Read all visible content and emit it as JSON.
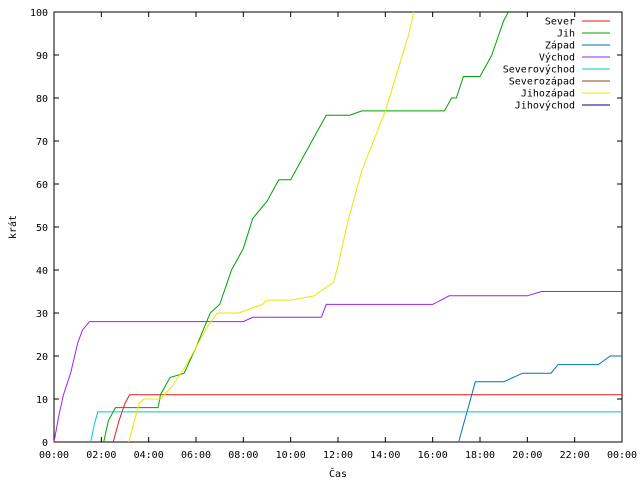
{
  "chart_data": {
    "type": "line",
    "xlabel": "Čas",
    "ylabel": "krát",
    "xlim": [
      0,
      24
    ],
    "ylim": [
      0,
      100
    ],
    "x_ticks": [
      {
        "v": 0,
        "label": "00:00"
      },
      {
        "v": 2,
        "label": "02:00"
      },
      {
        "v": 4,
        "label": "04:00"
      },
      {
        "v": 6,
        "label": "06:00"
      },
      {
        "v": 8,
        "label": "08:00"
      },
      {
        "v": 10,
        "label": "10:00"
      },
      {
        "v": 12,
        "label": "12:00"
      },
      {
        "v": 14,
        "label": "14:00"
      },
      {
        "v": 16,
        "label": "16:00"
      },
      {
        "v": 18,
        "label": "18:00"
      },
      {
        "v": 20,
        "label": "20:00"
      },
      {
        "v": 22,
        "label": "22:00"
      },
      {
        "v": 24,
        "label": "00:00"
      }
    ],
    "y_ticks": [
      {
        "v": 0,
        "label": "0"
      },
      {
        "v": 10,
        "label": "10"
      },
      {
        "v": 20,
        "label": "20"
      },
      {
        "v": 30,
        "label": "30"
      },
      {
        "v": 40,
        "label": "40"
      },
      {
        "v": 50,
        "label": "50"
      },
      {
        "v": 60,
        "label": "60"
      },
      {
        "v": 70,
        "label": "70"
      },
      {
        "v": 80,
        "label": "80"
      },
      {
        "v": 90,
        "label": "90"
      },
      {
        "v": 100,
        "label": "100"
      }
    ],
    "grid": false,
    "legend_position": "top-right",
    "series": [
      {
        "name": "Sever",
        "color": "#e41a1c",
        "x": [
          2.5,
          2.75,
          3.0,
          3.2,
          24.0
        ],
        "y": [
          0,
          5,
          9,
          11,
          11
        ]
      },
      {
        "name": "Jih",
        "color": "#00a000",
        "x": [
          2.1,
          2.3,
          2.6,
          4.4,
          4.5,
          4.9,
          5.5,
          6.0,
          6.3,
          6.6,
          7.0,
          7.5,
          8.0,
          8.4,
          9.0,
          9.5,
          10.0,
          10.5,
          11.0,
          11.5,
          12.0,
          12.5,
          13.0,
          14.0,
          15.0,
          16.0,
          16.5,
          16.8,
          17.0,
          17.3,
          17.6,
          18.0,
          18.5,
          19.0,
          19.2
        ],
        "y": [
          0,
          5,
          8,
          8,
          11,
          15,
          16,
          22,
          26,
          30,
          32,
          40,
          45,
          52,
          56,
          61,
          61,
          66,
          71,
          76,
          76,
          76,
          77,
          77,
          77,
          77,
          77,
          80,
          80,
          85,
          85,
          85,
          90,
          98,
          100
        ]
      },
      {
        "name": "Západ",
        "color": "#0072bd",
        "x": [
          17.1,
          17.3,
          17.5,
          17.8,
          19.0,
          19.8,
          20.5,
          21.0,
          21.3,
          22.0,
          23.0,
          23.5,
          24.0
        ],
        "y": [
          0,
          4,
          8,
          14,
          14,
          16,
          16,
          16,
          18,
          18,
          18,
          20,
          20
        ]
      },
      {
        "name": "Východ",
        "color": "#a020f0",
        "x": [
          0.0,
          0.2,
          0.4,
          0.7,
          1.0,
          1.2,
          1.5,
          4.0,
          8.0,
          8.4,
          11.3,
          11.5,
          16.0,
          16.7,
          20.0,
          20.6,
          24.0
        ],
        "y": [
          0,
          6,
          11,
          16,
          23,
          26,
          28,
          28,
          28,
          29,
          29,
          32,
          32,
          34,
          34,
          35,
          35
        ]
      },
      {
        "name": "Severovýchod",
        "color": "#00c8c8",
        "x": [
          1.55,
          1.7,
          1.85,
          2.0,
          24.0
        ],
        "y": [
          0,
          4,
          7,
          7,
          7
        ]
      },
      {
        "name": "Severozápad",
        "color": "#8b4513",
        "x": [],
        "y": []
      },
      {
        "name": "Jihozápad",
        "color": "#e8e800",
        "x": [
          3.15,
          3.4,
          3.6,
          3.8,
          4.5,
          5.0,
          5.6,
          6.0,
          6.5,
          6.9,
          7.2,
          7.8,
          8.8,
          9.0,
          10.0,
          11.0,
          11.5,
          11.8,
          12.0,
          12.4,
          13.0,
          13.5,
          14.0,
          14.5,
          15.0,
          15.2
        ],
        "y": [
          0,
          5,
          9,
          10,
          10,
          13,
          18,
          22,
          27,
          30,
          30,
          30,
          32,
          33,
          33,
          34,
          36,
          37,
          41,
          51,
          63,
          70,
          77,
          86,
          95,
          100
        ]
      },
      {
        "name": "Jihovýchod",
        "color": "#000080",
        "x": [],
        "y": []
      }
    ]
  }
}
